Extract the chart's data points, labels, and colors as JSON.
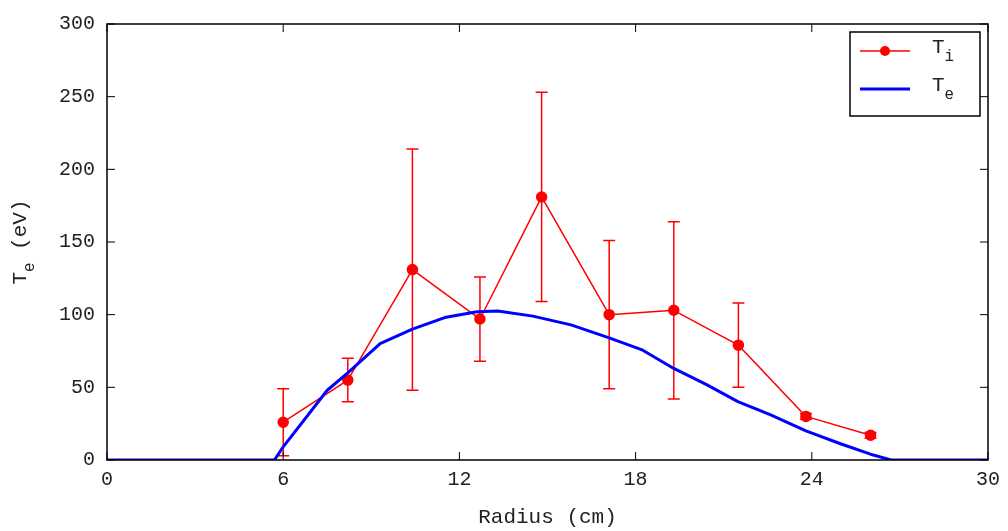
{
  "chart_data": {
    "type": "line",
    "xlabel": "Radius (cm)",
    "ylabel": "T$_{e}$ (eV)",
    "xlim": [
      0,
      30
    ],
    "xticks": [
      0,
      6,
      12,
      18,
      24,
      30
    ],
    "ylim": [
      0,
      300
    ],
    "yticks": [
      0,
      50,
      100,
      150,
      200,
      250,
      300
    ],
    "grid": false,
    "legend": "top right",
    "series": [
      {
        "name": "T$_{i}$",
        "color": "#ff0000",
        "marker": "circle",
        "x": [
          6,
          8.2,
          10.4,
          12.7,
          14.8,
          17.1,
          19.3,
          21.5,
          23.8,
          26.0
        ],
        "values": [
          26,
          55,
          131,
          97,
          181,
          100,
          103,
          79,
          30,
          17
        ],
        "errors": [
          23,
          15,
          83,
          29,
          72,
          51,
          61,
          29,
          2,
          2
        ]
      },
      {
        "name": "T$_{e}$",
        "color": "#0000ff",
        "marker": "none",
        "x": [
          0,
          5.7,
          6,
          7.5,
          8.2,
          9.3,
          10.4,
          11.5,
          12.6,
          13.3,
          14.5,
          15.8,
          17.1,
          18.2,
          19.3,
          20.4,
          21.5,
          22.6,
          23.8,
          25,
          26,
          26.7,
          30
        ],
        "values": [
          0,
          0,
          9,
          48,
          60,
          80,
          90,
          98,
          102,
          102.5,
          99,
          93,
          84,
          76,
          63,
          52,
          40,
          31,
          20,
          11,
          4,
          0,
          0
        ]
      }
    ]
  }
}
